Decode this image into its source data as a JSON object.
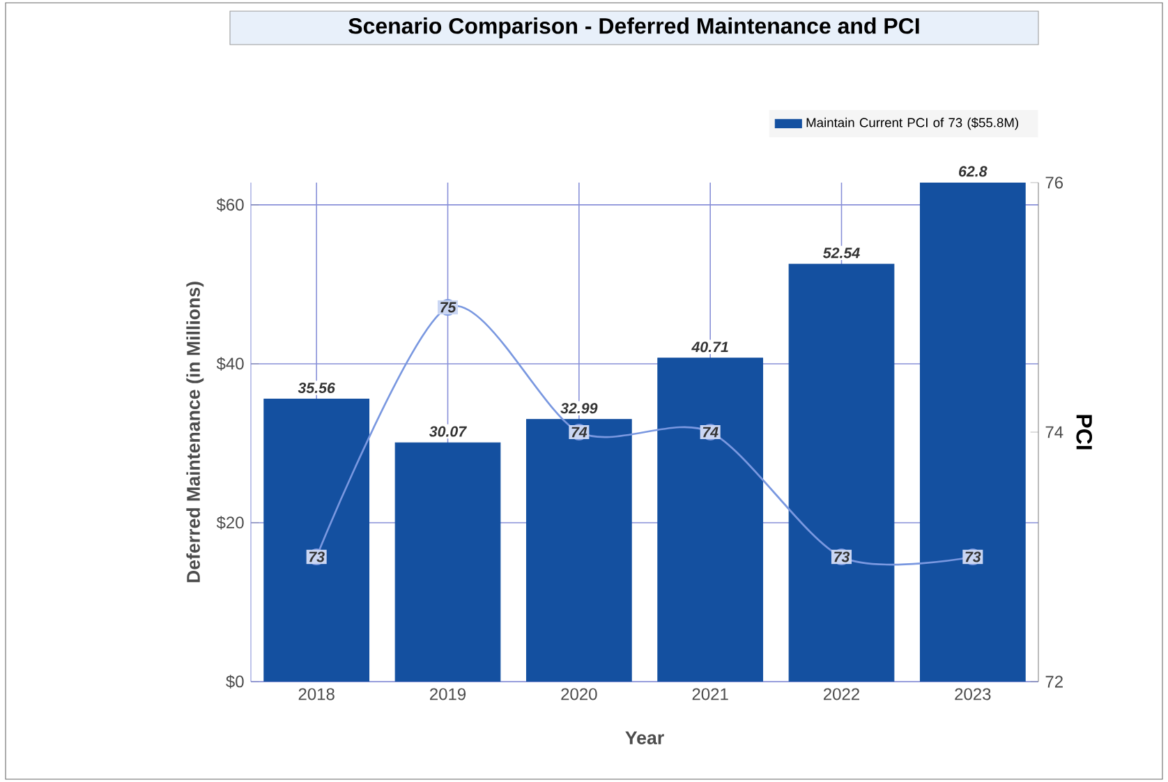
{
  "chart_data": {
    "type": "bar",
    "title": "Scenario Comparison - Deferred Maintenance and PCI",
    "xlabel": "Year",
    "ylabel": "Deferred Maintenance (in Millions)",
    "y2label": "PCI",
    "categories": [
      "2018",
      "2019",
      "2020",
      "2021",
      "2022",
      "2023"
    ],
    "series": [
      {
        "name": "Maintain Current PCI of 73 ($55.8M)",
        "color": "#1450a0",
        "values": [
          35.56,
          30.07,
          32.99,
          40.71,
          52.54,
          62.8
        ]
      },
      {
        "type": "line",
        "axis": "y2",
        "marker": "circle",
        "color": "#7a98e0",
        "values": [
          73,
          75,
          74,
          74,
          73,
          73
        ]
      }
    ],
    "ylim": [
      0,
      62.8
    ],
    "yticks": [
      {
        "value": 0,
        "label": "$0"
      },
      {
        "value": 20,
        "label": "$20"
      },
      {
        "value": 40,
        "label": "$40"
      },
      {
        "value": 60,
        "label": "$60"
      }
    ],
    "y2lim": [
      72,
      76
    ],
    "y2ticks": [
      72,
      74,
      76
    ],
    "grid": true,
    "legend": "top right",
    "data_labels": true
  }
}
